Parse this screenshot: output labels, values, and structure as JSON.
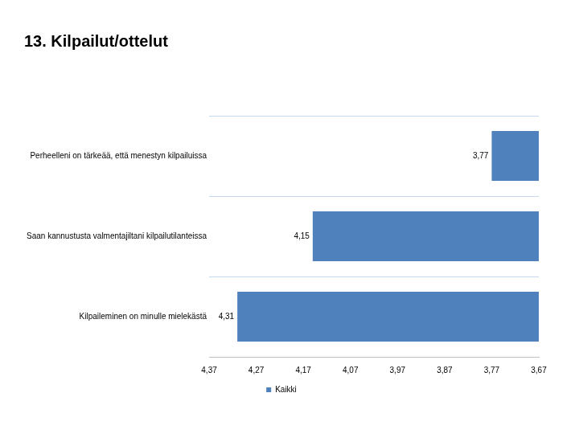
{
  "chart_data": {
    "type": "bar",
    "orientation": "horizontal",
    "title": "13. Kilpailut/ottelut",
    "categories": [
      "Perheelleni on tärkeää, että menestyn kilpailuissa",
      "Saan kannustusta valmentajiltani kilpailutilanteissa",
      "Kilpaileminen on minulle mielekästä"
    ],
    "series": [
      {
        "name": "Kaikki",
        "color": "#4f81bd",
        "values": [
          3.77,
          4.15,
          4.31
        ],
        "value_labels": [
          "3,77",
          "4,15",
          "4,31"
        ]
      }
    ],
    "xlim": [
      4.37,
      3.67
    ],
    "xticks": [
      {
        "value": 4.37,
        "label": "4,37"
      },
      {
        "value": 4.27,
        "label": "4,27"
      },
      {
        "value": 4.17,
        "label": "4,17"
      },
      {
        "value": 4.07,
        "label": "4,07"
      },
      {
        "value": 3.97,
        "label": "3,97"
      },
      {
        "value": 3.87,
        "label": "3,87"
      },
      {
        "value": 3.77,
        "label": "3,77"
      },
      {
        "value": 3.67,
        "label": "3,67"
      }
    ],
    "grid": true,
    "data_labels": true,
    "legend": "bottom"
  }
}
